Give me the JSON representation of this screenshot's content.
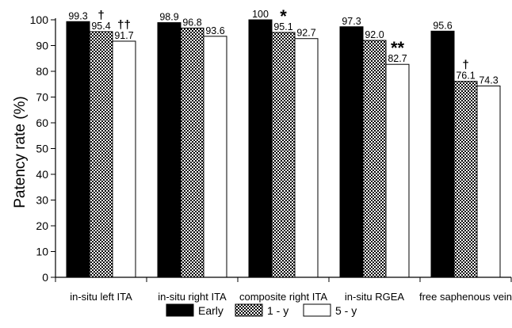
{
  "chart_data": {
    "type": "bar",
    "ylabel": "Patency rate (%)",
    "ylim": [
      0,
      100
    ],
    "ytick_step": 10,
    "grid": false,
    "legend_position": "bottom",
    "categories": [
      "in-situ left ITA",
      "in-situ right ITA",
      "composite right ITA",
      "in-situ RGEA",
      "free saphenous vein"
    ],
    "series": [
      {
        "name": "Early",
        "values": [
          99.3,
          98.9,
          100,
          97.3,
          95.6
        ],
        "labels": [
          "99.3",
          "98.9",
          "100",
          "97.3",
          "95.6"
        ],
        "fill": "solid-black"
      },
      {
        "name": "1 - y",
        "values": [
          95.4,
          96.8,
          95.1,
          92.0,
          76.1
        ],
        "labels": [
          "95.4",
          "96.8",
          "95.1",
          "92.0",
          "76.1"
        ],
        "fill": "checkered"
      },
      {
        "name": "5 - y",
        "values": [
          91.7,
          93.6,
          92.7,
          82.7,
          74.3
        ],
        "labels": [
          "91.7",
          "93.6",
          "92.7",
          "82.7",
          "74.3"
        ],
        "fill": "white"
      }
    ],
    "annotations": [
      {
        "category": 0,
        "series": 1,
        "text": "†"
      },
      {
        "category": 0,
        "series": 2,
        "text": "††"
      },
      {
        "category": 2,
        "series": 1,
        "text": "*"
      },
      {
        "category": 3,
        "series": 2,
        "text": "**"
      },
      {
        "category": 4,
        "series": 1,
        "text": "†"
      }
    ]
  }
}
